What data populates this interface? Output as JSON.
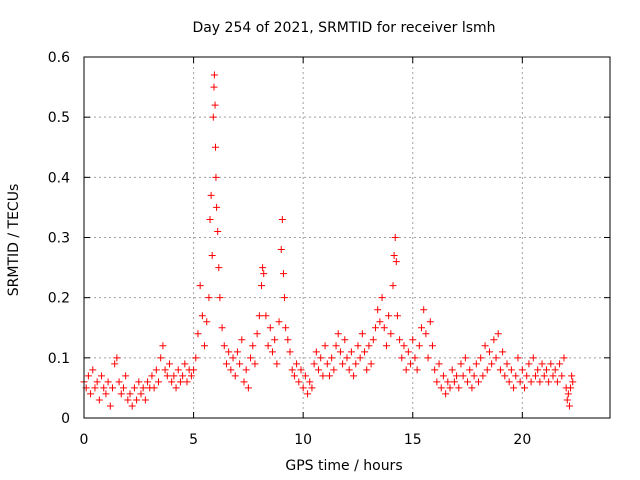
{
  "chart_data": {
    "type": "scatter",
    "title": "Day 254 of 2021, SRMTID for receiver lsmh",
    "xlabel": "GPS time / hours",
    "ylabel": "SRMTID / TECUs",
    "xlim": [
      0,
      24
    ],
    "ylim": [
      0,
      0.6
    ],
    "xticks": [
      0,
      5,
      10,
      15,
      20
    ],
    "yticks": [
      0,
      0.1,
      0.2,
      0.3,
      0.4,
      0.5,
      0.6
    ],
    "xtick_labels": [
      "0",
      "5",
      "10",
      "15",
      "20"
    ],
    "ytick_labels": [
      "0",
      "0.1",
      "0.2",
      "0.3",
      "0.4",
      "0.5",
      "0.6"
    ],
    "grid": true,
    "marker": "+",
    "color": "#ff0000",
    "series": [
      {
        "name": "lsmh",
        "points": [
          [
            0.0,
            0.06
          ],
          [
            0.1,
            0.05
          ],
          [
            0.2,
            0.07
          ],
          [
            0.3,
            0.04
          ],
          [
            0.4,
            0.08
          ],
          [
            0.5,
            0.05
          ],
          [
            0.6,
            0.06
          ],
          [
            0.7,
            0.03
          ],
          [
            0.8,
            0.07
          ],
          [
            0.9,
            0.05
          ],
          [
            1.0,
            0.04
          ],
          [
            1.1,
            0.06
          ],
          [
            1.2,
            0.02
          ],
          [
            1.3,
            0.05
          ],
          [
            1.4,
            0.09
          ],
          [
            1.5,
            0.1
          ],
          [
            1.6,
            0.06
          ],
          [
            1.7,
            0.04
          ],
          [
            1.8,
            0.05
          ],
          [
            1.9,
            0.07
          ],
          [
            2.0,
            0.03
          ],
          [
            2.1,
            0.04
          ],
          [
            2.2,
            0.02
          ],
          [
            2.3,
            0.05
          ],
          [
            2.4,
            0.03
          ],
          [
            2.5,
            0.06
          ],
          [
            2.6,
            0.04
          ],
          [
            2.7,
            0.05
          ],
          [
            2.8,
            0.03
          ],
          [
            2.9,
            0.06
          ],
          [
            3.0,
            0.05
          ],
          [
            3.1,
            0.07
          ],
          [
            3.2,
            0.05
          ],
          [
            3.3,
            0.08
          ],
          [
            3.4,
            0.06
          ],
          [
            3.5,
            0.1
          ],
          [
            3.6,
            0.12
          ],
          [
            3.7,
            0.08
          ],
          [
            3.8,
            0.07
          ],
          [
            3.9,
            0.09
          ],
          [
            4.0,
            0.06
          ],
          [
            4.1,
            0.07
          ],
          [
            4.2,
            0.05
          ],
          [
            4.3,
            0.08
          ],
          [
            4.4,
            0.06
          ],
          [
            4.5,
            0.07
          ],
          [
            4.6,
            0.09
          ],
          [
            4.7,
            0.06
          ],
          [
            4.8,
            0.08
          ],
          [
            4.9,
            0.07
          ],
          [
            5.0,
            0.08
          ],
          [
            5.1,
            0.1
          ],
          [
            5.2,
            0.14
          ],
          [
            5.3,
            0.22
          ],
          [
            5.4,
            0.17
          ],
          [
            5.5,
            0.12
          ],
          [
            5.6,
            0.16
          ],
          [
            5.7,
            0.2
          ],
          [
            5.75,
            0.33
          ],
          [
            5.8,
            0.37
          ],
          [
            5.85,
            0.27
          ],
          [
            5.9,
            0.5
          ],
          [
            5.93,
            0.55
          ],
          [
            5.95,
            0.57
          ],
          [
            5.98,
            0.52
          ],
          [
            6.0,
            0.45
          ],
          [
            6.02,
            0.4
          ],
          [
            6.05,
            0.35
          ],
          [
            6.1,
            0.31
          ],
          [
            6.15,
            0.25
          ],
          [
            6.2,
            0.2
          ],
          [
            6.3,
            0.15
          ],
          [
            6.4,
            0.12
          ],
          [
            6.5,
            0.09
          ],
          [
            6.6,
            0.11
          ],
          [
            6.7,
            0.08
          ],
          [
            6.8,
            0.1
          ],
          [
            6.9,
            0.07
          ],
          [
            7.0,
            0.11
          ],
          [
            7.1,
            0.09
          ],
          [
            7.2,
            0.13
          ],
          [
            7.3,
            0.06
          ],
          [
            7.4,
            0.08
          ],
          [
            7.5,
            0.05
          ],
          [
            7.6,
            0.1
          ],
          [
            7.7,
            0.12
          ],
          [
            7.8,
            0.09
          ],
          [
            7.9,
            0.14
          ],
          [
            8.0,
            0.17
          ],
          [
            8.1,
            0.22
          ],
          [
            8.15,
            0.25
          ],
          [
            8.2,
            0.24
          ],
          [
            8.3,
            0.17
          ],
          [
            8.4,
            0.12
          ],
          [
            8.5,
            0.15
          ],
          [
            8.6,
            0.11
          ],
          [
            8.7,
            0.13
          ],
          [
            8.8,
            0.09
          ],
          [
            8.9,
            0.16
          ],
          [
            9.0,
            0.28
          ],
          [
            9.05,
            0.33
          ],
          [
            9.1,
            0.24
          ],
          [
            9.15,
            0.2
          ],
          [
            9.2,
            0.15
          ],
          [
            9.3,
            0.13
          ],
          [
            9.4,
            0.11
          ],
          [
            9.5,
            0.08
          ],
          [
            9.6,
            0.07
          ],
          [
            9.7,
            0.09
          ],
          [
            9.8,
            0.06
          ],
          [
            9.9,
            0.08
          ],
          [
            10.0,
            0.05
          ],
          [
            10.1,
            0.07
          ],
          [
            10.2,
            0.04
          ],
          [
            10.3,
            0.06
          ],
          [
            10.4,
            0.05
          ],
          [
            10.5,
            0.09
          ],
          [
            10.6,
            0.11
          ],
          [
            10.7,
            0.08
          ],
          [
            10.8,
            0.1
          ],
          [
            10.9,
            0.07
          ],
          [
            11.0,
            0.12
          ],
          [
            11.1,
            0.09
          ],
          [
            11.2,
            0.07
          ],
          [
            11.3,
            0.1
          ],
          [
            11.4,
            0.08
          ],
          [
            11.5,
            0.12
          ],
          [
            11.6,
            0.14
          ],
          [
            11.7,
            0.11
          ],
          [
            11.8,
            0.09
          ],
          [
            11.9,
            0.13
          ],
          [
            12.0,
            0.1
          ],
          [
            12.1,
            0.08
          ],
          [
            12.2,
            0.11
          ],
          [
            12.3,
            0.07
          ],
          [
            12.4,
            0.09
          ],
          [
            12.5,
            0.12
          ],
          [
            12.6,
            0.1
          ],
          [
            12.7,
            0.14
          ],
          [
            12.8,
            0.11
          ],
          [
            12.9,
            0.08
          ],
          [
            13.0,
            0.12
          ],
          [
            13.1,
            0.09
          ],
          [
            13.2,
            0.13
          ],
          [
            13.3,
            0.15
          ],
          [
            13.4,
            0.18
          ],
          [
            13.5,
            0.16
          ],
          [
            13.6,
            0.2
          ],
          [
            13.7,
            0.15
          ],
          [
            13.8,
            0.12
          ],
          [
            13.9,
            0.17
          ],
          [
            14.0,
            0.14
          ],
          [
            14.1,
            0.22
          ],
          [
            14.15,
            0.27
          ],
          [
            14.2,
            0.3
          ],
          [
            14.25,
            0.26
          ],
          [
            14.3,
            0.17
          ],
          [
            14.4,
            0.13
          ],
          [
            14.5,
            0.1
          ],
          [
            14.6,
            0.12
          ],
          [
            14.7,
            0.08
          ],
          [
            14.8,
            0.11
          ],
          [
            14.9,
            0.09
          ],
          [
            15.0,
            0.13
          ],
          [
            15.1,
            0.1
          ],
          [
            15.2,
            0.08
          ],
          [
            15.3,
            0.12
          ],
          [
            15.4,
            0.15
          ],
          [
            15.5,
            0.18
          ],
          [
            15.6,
            0.14
          ],
          [
            15.7,
            0.1
          ],
          [
            15.8,
            0.16
          ],
          [
            15.9,
            0.12
          ],
          [
            16.0,
            0.08
          ],
          [
            16.1,
            0.06
          ],
          [
            16.2,
            0.09
          ],
          [
            16.3,
            0.05
          ],
          [
            16.4,
            0.07
          ],
          [
            16.5,
            0.04
          ],
          [
            16.6,
            0.06
          ],
          [
            16.7,
            0.05
          ],
          [
            16.8,
            0.08
          ],
          [
            16.9,
            0.06
          ],
          [
            17.0,
            0.07
          ],
          [
            17.1,
            0.05
          ],
          [
            17.2,
            0.09
          ],
          [
            17.3,
            0.07
          ],
          [
            17.4,
            0.1
          ],
          [
            17.5,
            0.06
          ],
          [
            17.6,
            0.08
          ],
          [
            17.7,
            0.05
          ],
          [
            17.8,
            0.07
          ],
          [
            17.9,
            0.09
          ],
          [
            18.0,
            0.06
          ],
          [
            18.1,
            0.1
          ],
          [
            18.2,
            0.07
          ],
          [
            18.3,
            0.12
          ],
          [
            18.4,
            0.08
          ],
          [
            18.5,
            0.11
          ],
          [
            18.6,
            0.09
          ],
          [
            18.7,
            0.13
          ],
          [
            18.8,
            0.1
          ],
          [
            18.9,
            0.14
          ],
          [
            19.0,
            0.08
          ],
          [
            19.1,
            0.11
          ],
          [
            19.2,
            0.07
          ],
          [
            19.3,
            0.09
          ],
          [
            19.4,
            0.06
          ],
          [
            19.5,
            0.08
          ],
          [
            19.6,
            0.05
          ],
          [
            19.7,
            0.07
          ],
          [
            19.8,
            0.1
          ],
          [
            19.9,
            0.06
          ],
          [
            20.0,
            0.08
          ],
          [
            20.1,
            0.05
          ],
          [
            20.2,
            0.07
          ],
          [
            20.3,
            0.09
          ],
          [
            20.4,
            0.06
          ],
          [
            20.5,
            0.1
          ],
          [
            20.6,
            0.07
          ],
          [
            20.7,
            0.08
          ],
          [
            20.8,
            0.06
          ],
          [
            20.9,
            0.09
          ],
          [
            21.0,
            0.07
          ],
          [
            21.1,
            0.08
          ],
          [
            21.2,
            0.06
          ],
          [
            21.3,
            0.09
          ],
          [
            21.4,
            0.07
          ],
          [
            21.5,
            0.08
          ],
          [
            21.6,
            0.06
          ],
          [
            21.7,
            0.09
          ],
          [
            21.8,
            0.07
          ],
          [
            21.9,
            0.1
          ],
          [
            22.0,
            0.05
          ],
          [
            22.05,
            0.03
          ],
          [
            22.1,
            0.04
          ],
          [
            22.15,
            0.02
          ],
          [
            22.2,
            0.05
          ],
          [
            22.25,
            0.07
          ],
          [
            22.3,
            0.06
          ]
        ]
      }
    ]
  }
}
